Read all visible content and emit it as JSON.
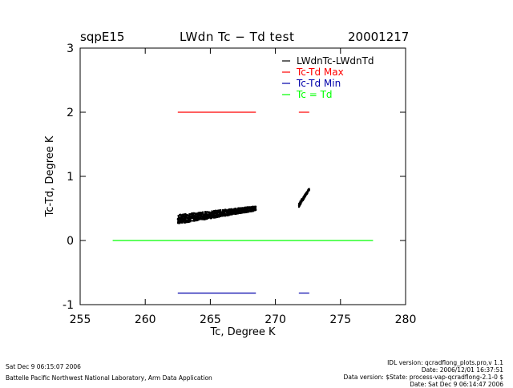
{
  "header": {
    "site": "sqpE15",
    "title": "LWdn Tc − Td test",
    "date": "20001217"
  },
  "footer": {
    "left_timestamp": "Sat Dec  9 06:15:07 2006",
    "left_org": "Battelle Pacific Northwest National Laboratory, Arm Data Application",
    "right_lines": [
      "IDL version: qcradflong_plots.pro,v 1.1",
      "Date: 2006/12/01 16:37:51",
      "Data version: $State: process-vap-qcradflong-2.1-0 $",
      "Date: Sat Dec  9 06:14:47 2006"
    ]
  },
  "colors": {
    "lwdn": "#000000",
    "max": "#ff0000",
    "min": "#0000aa",
    "equal": "#00ff00"
  },
  "chart_data": {
    "type": "line",
    "title": "LWdn Tc − Td test",
    "xlabel": "Tc, Degree K",
    "ylabel": "Tc-Td, Degree K",
    "xlim": [
      255,
      280
    ],
    "ylim": [
      -1,
      3
    ],
    "xticks": [
      255,
      260,
      265,
      270,
      275,
      280
    ],
    "yticks": [
      -1,
      0,
      1,
      2,
      3
    ],
    "grid": false,
    "legend_position": "top-right",
    "series": [
      {
        "name": "LWdnTc-LWdnTd",
        "kind": "scatter",
        "color": "#000000",
        "clusters": [
          {
            "x_start": 262.5,
            "x_end": 268.5,
            "y_start": 0.33,
            "y_end": 0.5,
            "spread": 0.12
          },
          {
            "x_start": 271.8,
            "x_end": 272.6,
            "y_start": 0.55,
            "y_end": 0.8,
            "spread": 0.05
          }
        ]
      },
      {
        "name": "Tc-Td Max",
        "kind": "segments",
        "color": "#ff0000",
        "segments": [
          {
            "x": [
              262.5,
              268.5
            ],
            "y": 2.0
          },
          {
            "x": [
              271.8,
              272.6
            ],
            "y": 2.0
          }
        ]
      },
      {
        "name": "Tc-Td Min",
        "kind": "segments",
        "color": "#0000aa",
        "segments": [
          {
            "x": [
              262.5,
              268.5
            ],
            "y": -0.82
          },
          {
            "x": [
              271.8,
              272.6
            ],
            "y": -0.82
          }
        ]
      },
      {
        "name": "Tc = Td",
        "kind": "segments",
        "color": "#00ff00",
        "segments": [
          {
            "x": [
              257.5,
              277.5
            ],
            "y": 0.0
          }
        ]
      }
    ]
  }
}
